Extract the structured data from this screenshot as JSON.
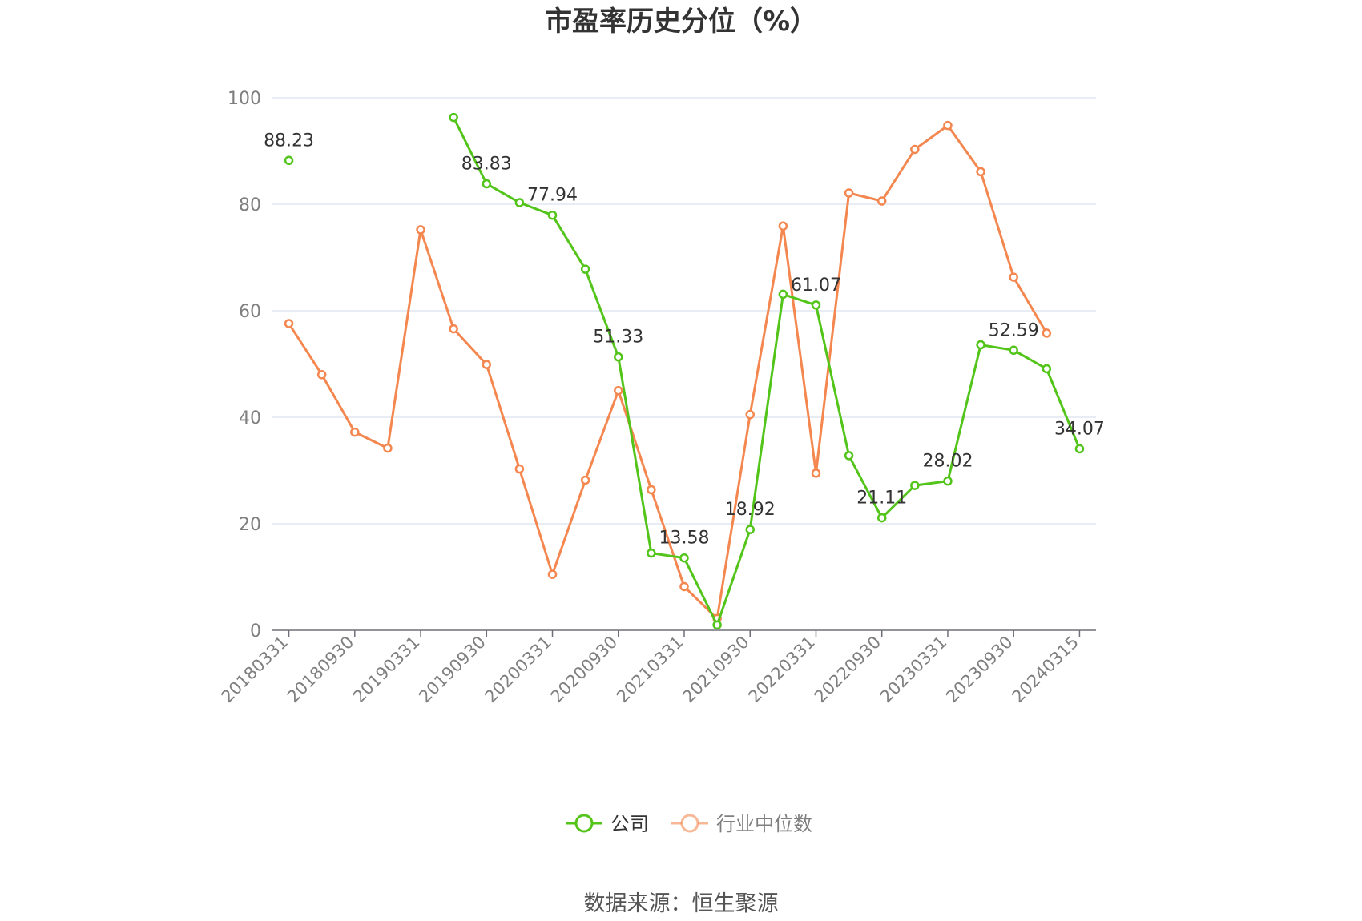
{
  "chart_data": {
    "type": "line",
    "title": "市盈率历史分位（%）",
    "source": "数据来源：恒生聚源",
    "ylim": [
      0,
      100
    ],
    "yticks": [
      0,
      20,
      40,
      60,
      80,
      100
    ],
    "grid": true,
    "legend_position": "bottom-center",
    "x": [
      "20180331",
      "20180630",
      "20180930",
      "20181231",
      "20190331",
      "20190630",
      "20190930",
      "20191231",
      "20200331",
      "20200630",
      "20200930",
      "20201231",
      "20210331",
      "20210630",
      "20210930",
      "20211231",
      "20220331",
      "20220630",
      "20220930",
      "20221231",
      "20230331",
      "20230630",
      "20230930",
      "20231231",
      "20240315"
    ],
    "xtick_labels": [
      "20180331",
      "20180930",
      "20190331",
      "20190930",
      "20200331",
      "20200930",
      "20210331",
      "20210930",
      "20220331",
      "20220930",
      "20230331",
      "20230930",
      "20240315"
    ],
    "series": [
      {
        "name": "公司",
        "color": "#52c41a",
        "values": [
          88.23,
          null,
          null,
          null,
          null,
          96.3,
          83.83,
          80.3,
          77.94,
          67.8,
          51.33,
          14.5,
          13.58,
          1.0,
          18.92,
          63.1,
          61.07,
          32.8,
          21.11,
          27.2,
          28.02,
          53.6,
          52.59,
          49.1,
          34.07
        ],
        "labels": [
          {
            "index": 0,
            "text": "88.23"
          },
          {
            "index": 6,
            "text": "83.83"
          },
          {
            "index": 8,
            "text": "77.94"
          },
          {
            "index": 10,
            "text": "51.33"
          },
          {
            "index": 12,
            "text": "13.58"
          },
          {
            "index": 14,
            "text": "18.92"
          },
          {
            "index": 16,
            "text": "61.07"
          },
          {
            "index": 18,
            "text": "21.11"
          },
          {
            "index": 20,
            "text": "28.02"
          },
          {
            "index": 22,
            "text": "52.59"
          },
          {
            "index": 24,
            "text": "34.07"
          }
        ]
      },
      {
        "name": "行业中位数",
        "color": "#f4874f",
        "values": [
          57.6,
          48.0,
          37.2,
          34.2,
          75.2,
          56.6,
          49.9,
          30.3,
          10.5,
          28.2,
          45.0,
          26.4,
          8.2,
          2.2,
          40.5,
          75.9,
          29.5,
          82.1,
          80.6,
          90.3,
          94.8,
          86.1,
          66.3,
          55.8,
          null
        ]
      }
    ]
  }
}
